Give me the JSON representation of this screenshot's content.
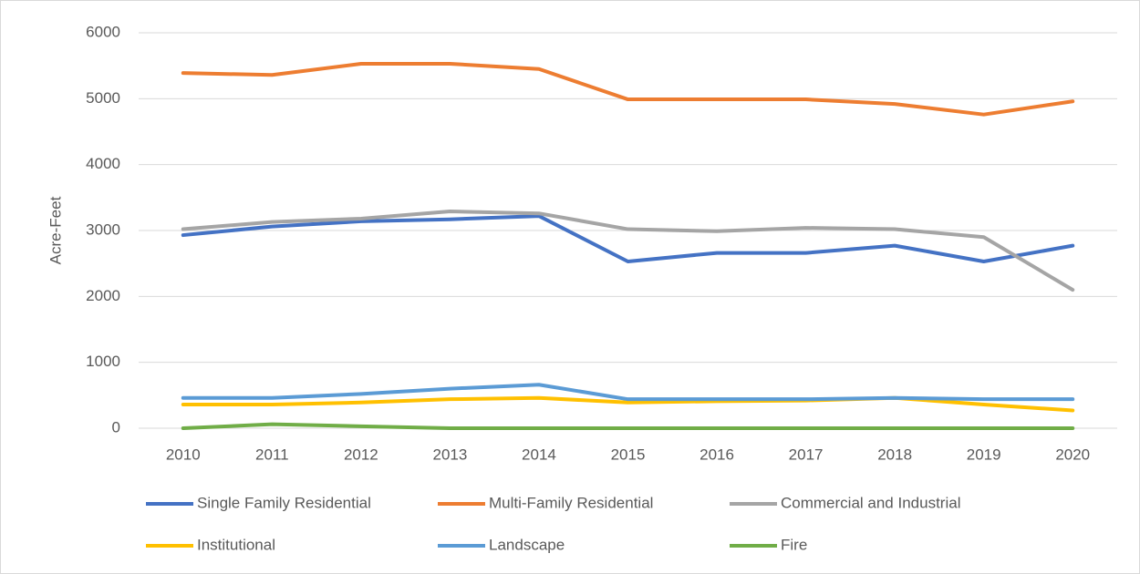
{
  "chart_data": {
    "type": "line",
    "y_label": "Acre-Feet",
    "categories": [
      "2010",
      "2011",
      "2012",
      "2013",
      "2014",
      "2015",
      "2016",
      "2017",
      "2018",
      "2019",
      "2020"
    ],
    "series": [
      {
        "name": "Single Family Residential",
        "color": "#4472c4",
        "values": [
          2930,
          3060,
          3140,
          3170,
          3220,
          2530,
          2660,
          2660,
          2770,
          2530,
          2770
        ]
      },
      {
        "name": "Multi-Family Residential",
        "color": "#ed7d31",
        "values": [
          5390,
          5360,
          5530,
          5530,
          5450,
          4990,
          4990,
          4990,
          4920,
          4760,
          4960
        ]
      },
      {
        "name": "Commercial and Industrial",
        "color": "#a5a5a5",
        "values": [
          3020,
          3130,
          3180,
          3290,
          3260,
          3020,
          2990,
          3040,
          3020,
          2900,
          2100
        ]
      },
      {
        "name": "Institutional",
        "color": "#ffc000",
        "values": [
          360,
          360,
          390,
          440,
          460,
          390,
          410,
          420,
          460,
          360,
          270
        ]
      },
      {
        "name": "Landscape",
        "color": "#5b9bd5",
        "values": [
          460,
          460,
          520,
          600,
          660,
          440,
          440,
          440,
          460,
          440,
          440
        ]
      },
      {
        "name": "Fire",
        "color": "#70ad47",
        "values": [
          0,
          60,
          30,
          0,
          0,
          0,
          0,
          0,
          0,
          0,
          0
        ]
      }
    ],
    "ylim": [
      0,
      6000
    ],
    "yticks": [
      0,
      1000,
      2000,
      3000,
      4000,
      5000,
      6000
    ],
    "grid": true,
    "legend": "bottom"
  }
}
